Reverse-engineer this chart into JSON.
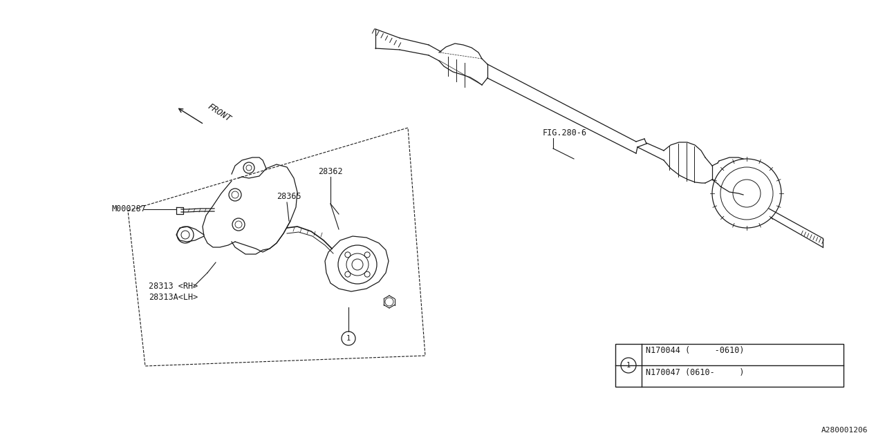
{
  "bg_color": "#ffffff",
  "line_color": "#1a1a1a",
  "fig_width": 12.8,
  "fig_height": 6.4,
  "labels": {
    "fig_ref": "FIG.280-6",
    "part1": "M000287",
    "part2": "28362",
    "part3": "28365",
    "part4a": "28313 <RH>",
    "part4b": "28313A<LH>",
    "circle1_label1": "N170044 (     -0610)",
    "circle1_label2": "N170047 (0610-     )",
    "diagram_id": "A280001206",
    "front_label": "FRONT",
    "circle_num": "1"
  },
  "font_family": "monospace",
  "label_fontsize": 8.5,
  "small_fontsize": 8
}
